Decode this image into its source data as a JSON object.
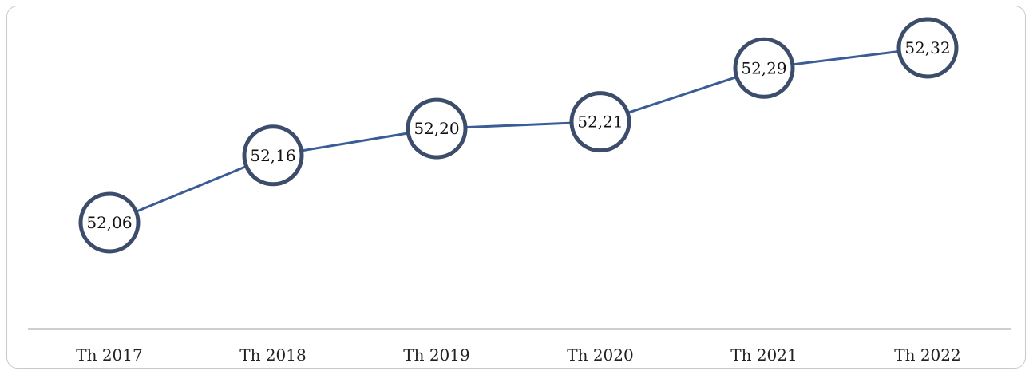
{
  "chart_data": {
    "type": "line",
    "categories": [
      "Th 2017",
      "Th 2018",
      "Th 2019",
      "Th 2020",
      "Th 2021",
      "Th 2022"
    ],
    "series": [
      {
        "values": [
          52.06,
          52.16,
          52.2,
          52.21,
          52.29,
          52.32
        ],
        "labels": [
          "52,06",
          "52,16",
          "52,20",
          "52,21",
          "52,29",
          "52,32"
        ],
        "color": "#3a5d96",
        "marker_color": "#3c4d6b"
      }
    ],
    "grid": false,
    "legend": "none"
  }
}
